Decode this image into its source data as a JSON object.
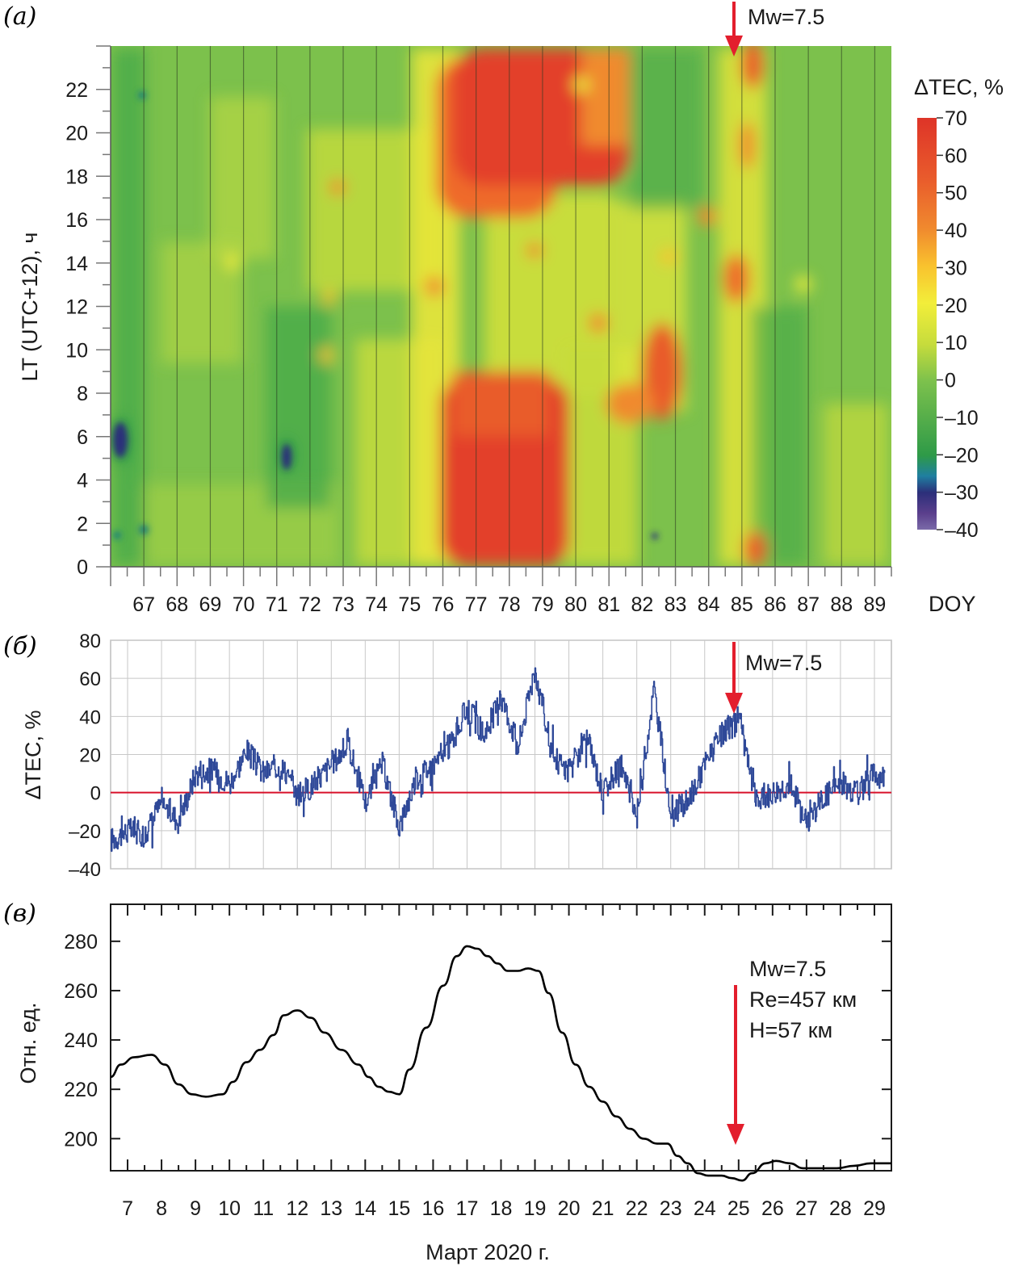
{
  "panels": {
    "a": {
      "letter": "(a)"
    },
    "b": {
      "letter": "(б)"
    },
    "c": {
      "letter": "(в)"
    }
  },
  "colors": {
    "arrow": "#e31e2d",
    "series_line": "#2e4898",
    "zero_line": "#d8102a",
    "grid": "#c8c8c8",
    "heat_neg40": "#5a3f8c",
    "heat_neg30": "#2c2f7a",
    "heat_neg20": "#2e9a48",
    "heat_0": "#7cc14c",
    "heat_10": "#c6dc3c",
    "heat_20": "#f2ee3a",
    "heat_30": "#f9c22e",
    "heat_40": "#f08a2e",
    "heat_70": "#de3428"
  },
  "chart_data": [
    {
      "type": "heatmap",
      "panel": "a",
      "ylabel": "LT (UTC+12), ч",
      "xlabel": "DOY",
      "x_ticks": [
        "67",
        "68",
        "69",
        "70",
        "71",
        "72",
        "73",
        "74",
        "75",
        "76",
        "77",
        "78",
        "79",
        "80",
        "81",
        "82",
        "83",
        "84",
        "85",
        "86",
        "87",
        "88",
        "89"
      ],
      "y_ticks": [
        "0",
        "2",
        "4",
        "6",
        "8",
        "10",
        "12",
        "14",
        "16",
        "18",
        "20",
        "22"
      ],
      "xlim": [
        66,
        89.5
      ],
      "ylim": [
        0,
        24
      ],
      "colorbar": {
        "label": "ΔTEC, %",
        "ticks": [
          "70",
          "60",
          "50",
          "40",
          "30",
          "20",
          "10",
          "0",
          "–10",
          "–20",
          "–30",
          "–40"
        ],
        "range": [
          -40,
          70
        ]
      },
      "annotation": {
        "text": "Mw=7.5",
        "doy": 85.3
      },
      "anomalies": [
        {
          "doy": 78.3,
          "lt_from": 16,
          "lt_to": 24,
          "delta": 65
        },
        {
          "doy": 78.3,
          "lt_from": 0,
          "lt_to": 8.5,
          "delta": 65
        },
        {
          "doy": 83.3,
          "lt_from": 6.5,
          "lt_to": 11,
          "delta": 50
        },
        {
          "doy": 85.6,
          "lt_from": 12,
          "lt_to": 14,
          "delta": 45
        },
        {
          "doy": 66.3,
          "lt_from": 5,
          "lt_to": 6.5,
          "delta": -35
        },
        {
          "doy": 71.5,
          "lt_from": 4.2,
          "lt_to": 6,
          "delta": -35
        }
      ]
    },
    {
      "type": "line",
      "panel": "b",
      "ylabel": "ΔTEC, %",
      "ylim": [
        -40,
        80
      ],
      "y_ticks": [
        "80",
        "60",
        "40",
        "20",
        "0",
        "–20",
        "–40"
      ],
      "xlim": [
        6.5,
        29.5
      ],
      "annotation": {
        "text": "Mw=7.5",
        "day": 25.2
      },
      "series": [
        {
          "x": [
            6.5,
            7,
            7.5,
            8,
            8.5,
            9,
            9.5,
            10,
            10.5,
            11,
            11.5,
            12,
            12.5,
            13,
            13.5,
            14,
            14.5,
            15,
            15.5,
            16,
            16.5,
            17,
            17.5,
            18,
            18.5,
            19,
            19.5,
            20,
            20.5,
            21,
            21.5,
            22,
            22.5,
            23,
            23.5,
            24,
            24.5,
            25,
            25.5,
            26,
            26.5,
            27,
            27.5,
            28,
            28.5,
            29,
            29.3
          ],
          "y": [
            -25,
            -20,
            -22,
            -5,
            -15,
            10,
            12,
            5,
            22,
            10,
            15,
            -2,
            5,
            15,
            25,
            -5,
            15,
            -18,
            8,
            15,
            25,
            45,
            30,
            50,
            25,
            65,
            20,
            10,
            30,
            0,
            15,
            -12,
            55,
            -12,
            -5,
            15,
            30,
            40,
            -5,
            0,
            5,
            -15,
            -2,
            5,
            0,
            10,
            8
          ]
        }
      ]
    },
    {
      "type": "line",
      "panel": "c",
      "ylabel": "Отн. ед.",
      "xlabel": "Март 2020 г.",
      "ylim": [
        187,
        295
      ],
      "y_ticks": [
        "280",
        "260",
        "240",
        "220",
        "200"
      ],
      "x_ticks": [
        "7",
        "8",
        "9",
        "10",
        "11",
        "12",
        "13",
        "14",
        "15",
        "16",
        "17",
        "18",
        "19",
        "20",
        "21",
        "22",
        "23",
        "24",
        "25",
        "26",
        "27",
        "28",
        "29"
      ],
      "xlim": [
        6.5,
        29.5
      ],
      "annotation": {
        "lines": [
          "Mw=7.5",
          "Re=457 км",
          "H=57 км"
        ],
        "day": 25.2
      },
      "series": [
        {
          "x": [
            6.5,
            6.8,
            7.2,
            7.7,
            8.1,
            8.5,
            8.9,
            9.3,
            9.8,
            10.1,
            10.5,
            10.9,
            11.3,
            11.6,
            12.0,
            12.4,
            12.8,
            13.3,
            13.8,
            14.1,
            14.4,
            14.7,
            15.0,
            15.3,
            15.8,
            16.3,
            16.7,
            17.0,
            17.3,
            17.6,
            17.9,
            18.2,
            18.5,
            18.8,
            19.1,
            19.4,
            19.8,
            20.2,
            20.6,
            21.0,
            21.4,
            21.8,
            22.2,
            22.6,
            22.9,
            23.2,
            23.5,
            23.8,
            24.1,
            24.5,
            24.8,
            25.1,
            25.4,
            25.8,
            26.1,
            26.5,
            26.9,
            27.4,
            27.9,
            28.4,
            28.9,
            29.5
          ],
          "y": [
            225,
            230,
            233,
            234,
            230,
            222,
            218,
            217,
            218,
            223,
            231,
            236,
            242,
            250,
            252,
            249,
            243,
            236,
            230,
            225,
            221,
            219,
            218,
            228,
            245,
            262,
            274,
            278,
            277,
            274,
            271,
            268,
            268,
            269,
            268,
            259,
            243,
            230,
            221,
            215,
            209,
            204,
            200,
            198,
            198,
            193,
            190,
            186,
            185,
            185,
            184,
            183,
            186,
            190,
            191,
            190,
            188,
            188,
            188,
            189,
            190,
            190
          ]
        }
      ]
    }
  ]
}
